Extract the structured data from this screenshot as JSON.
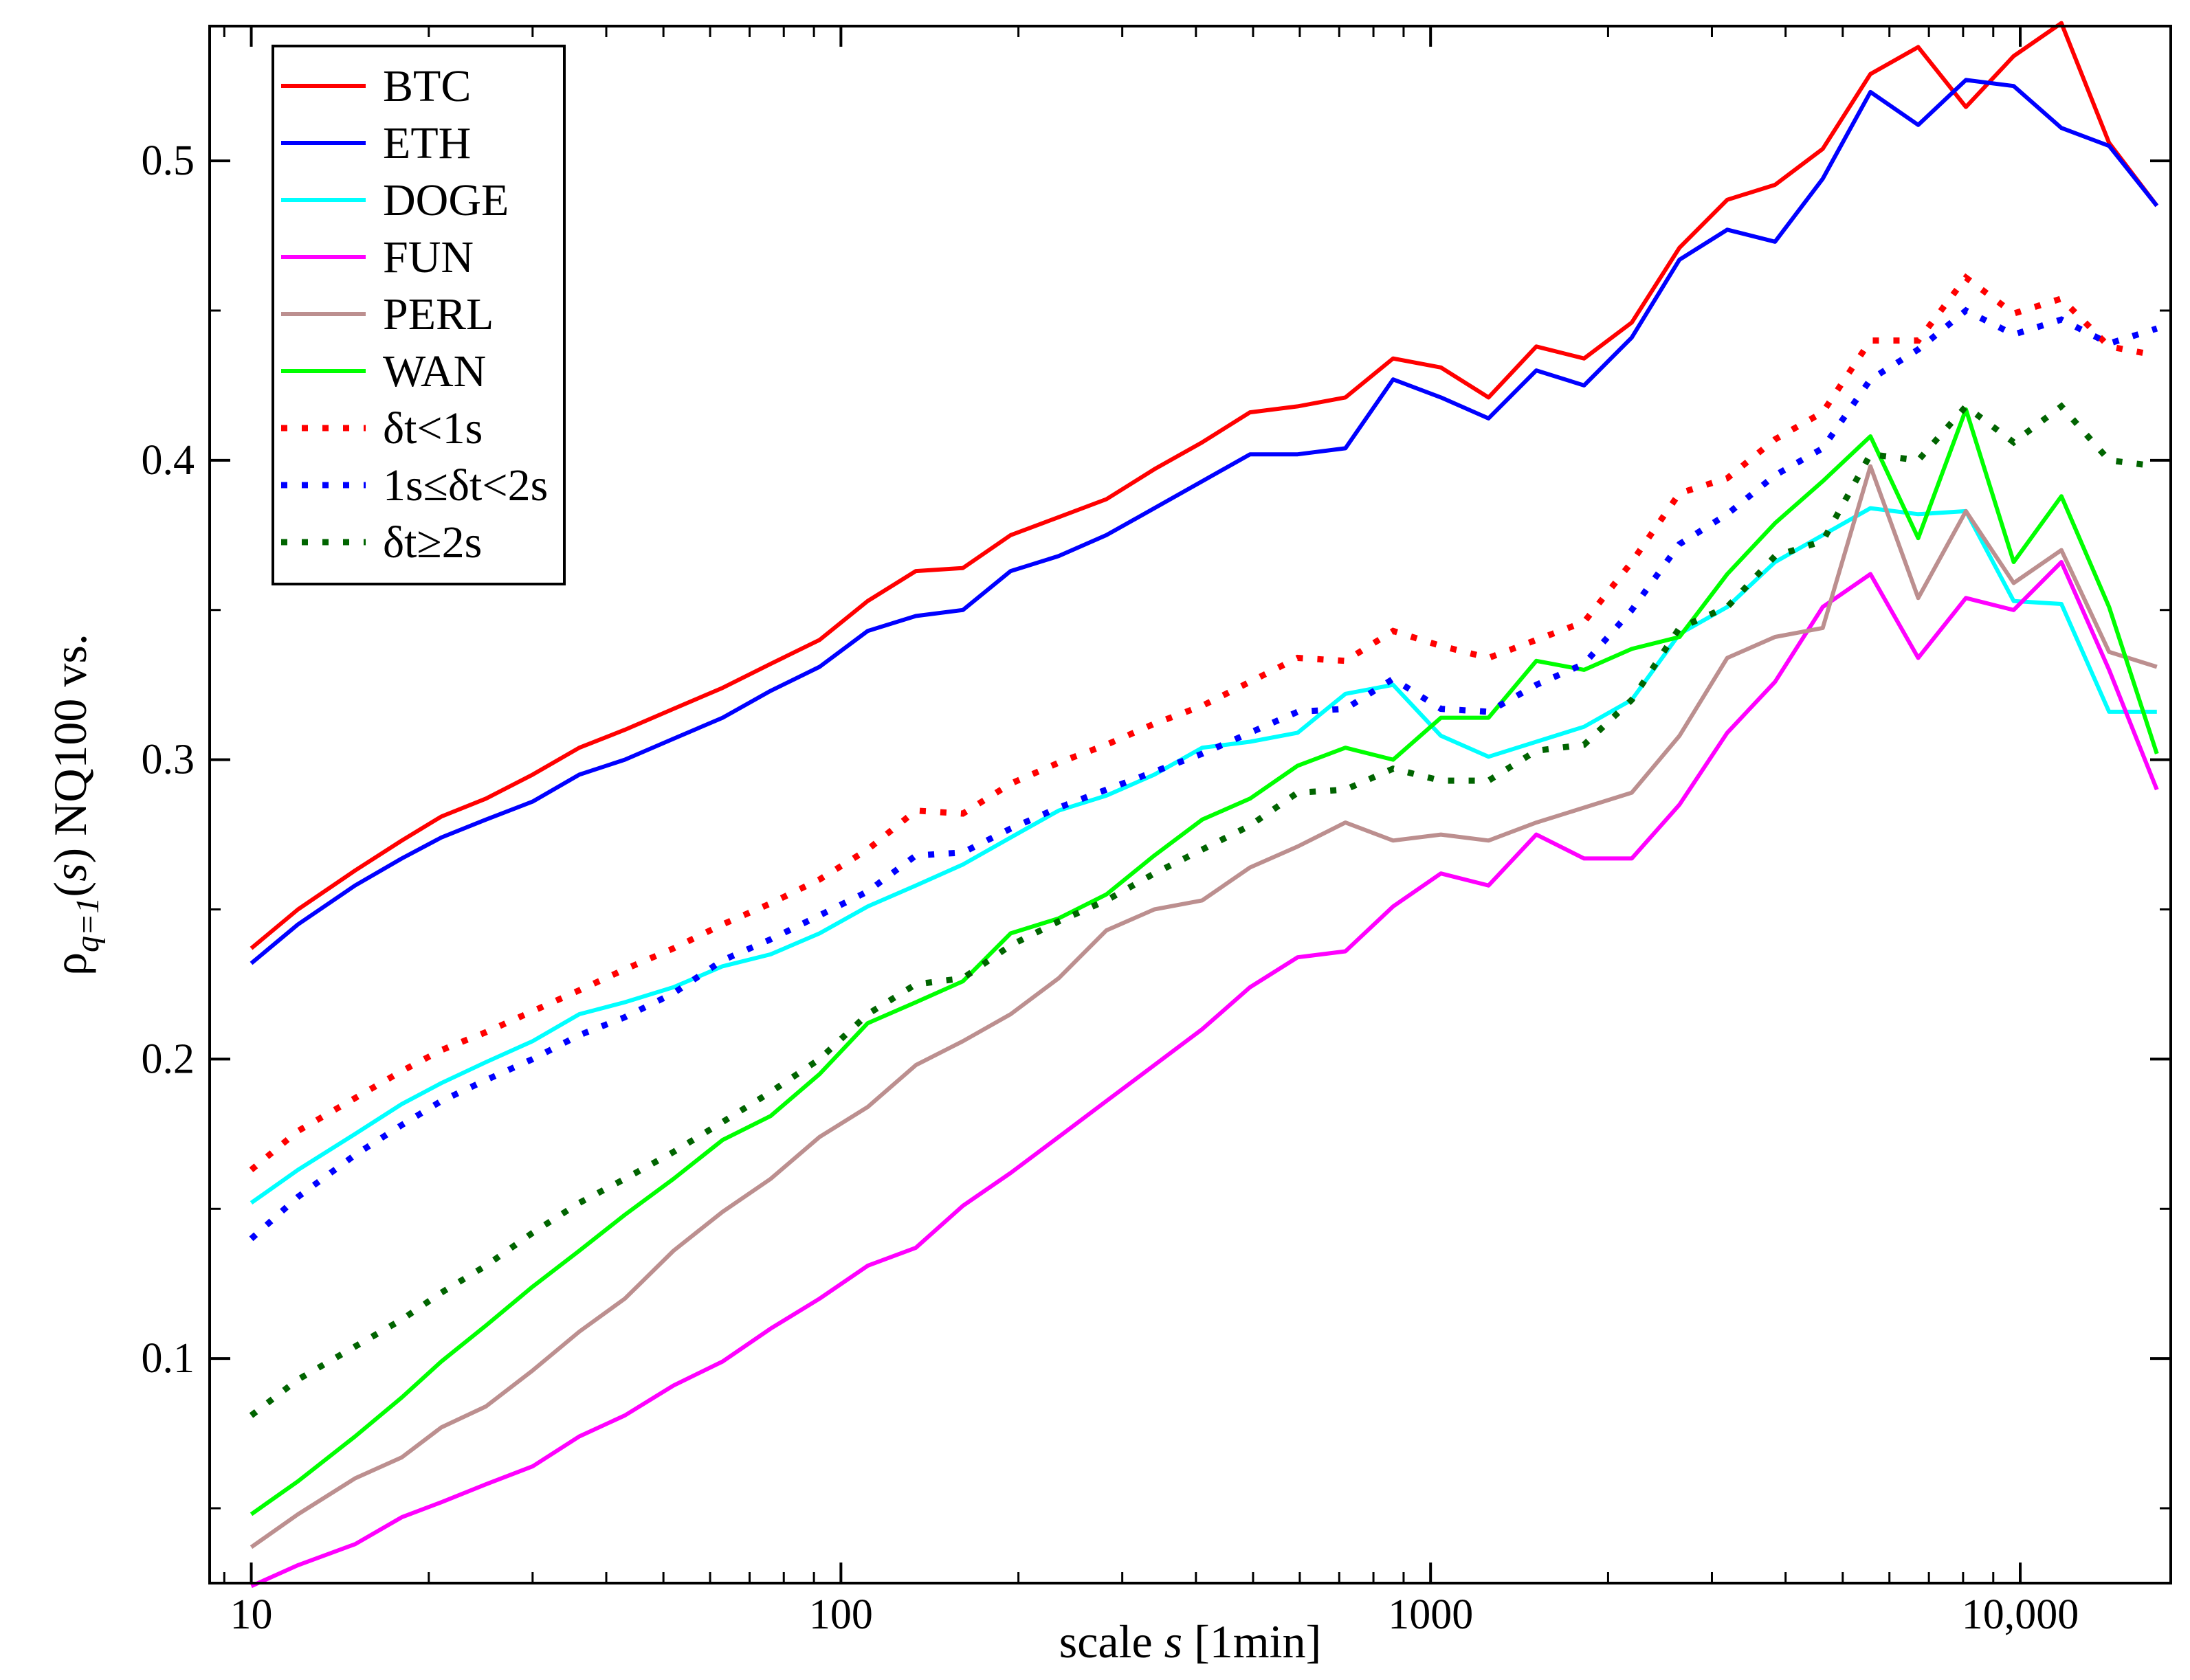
{
  "chart_data": {
    "type": "line",
    "xscale": "log",
    "xlabel": {
      "prefix": "scale ",
      "var": "s",
      "suffix": " [1min]"
    },
    "ylabel": {
      "rho": "ρ",
      "sub": "q=1",
      "open": "(",
      "var": "s",
      "rest": ") NQ100 vs."
    },
    "xlim": [
      8.5,
      18000
    ],
    "ylim": [
      0.025,
      0.545
    ],
    "xticks": [
      {
        "value": 10,
        "label": "10"
      },
      {
        "value": 100,
        "label": "100"
      },
      {
        "value": 1000,
        "label": "1000"
      },
      {
        "value": 10000,
        "label": "10,000"
      }
    ],
    "yticks": [
      {
        "value": 0.1,
        "label": "0.1"
      },
      {
        "value": 0.2,
        "label": "0.2"
      },
      {
        "value": 0.3,
        "label": "0.3"
      },
      {
        "value": 0.4,
        "label": "0.4"
      },
      {
        "value": 0.5,
        "label": "0.5"
      }
    ],
    "legend_position": "top-left",
    "x": [
      10,
      12,
      15,
      18,
      21,
      25,
      30,
      36,
      43,
      52,
      63,
      76,
      92,
      111,
      134,
      161,
      194,
      234,
      282,
      340,
      410,
      494,
      595,
      717,
      864,
      1041,
      1254,
      1511,
      1821,
      2194,
      2643,
      3185,
      3838,
      4624,
      5572,
      6714,
      8089,
      9747,
      11744,
      14150,
      17050
    ],
    "series": [
      {
        "name": "BTC",
        "color": "#ff0000",
        "style": "solid",
        "values": [
          0.237,
          0.25,
          0.263,
          0.273,
          0.281,
          0.287,
          0.295,
          0.304,
          0.31,
          0.317,
          0.324,
          0.332,
          0.34,
          0.353,
          0.363,
          0.364,
          0.375,
          0.381,
          0.387,
          0.397,
          0.406,
          0.416,
          0.418,
          0.421,
          0.434,
          0.431,
          0.421,
          0.438,
          0.434,
          0.446,
          0.471,
          0.487,
          0.492,
          0.504,
          0.529,
          0.538,
          0.518,
          0.535,
          0.546,
          0.506,
          0.485
        ]
      },
      {
        "name": "ETH",
        "color": "#0000ff",
        "style": "solid",
        "values": [
          0.232,
          0.245,
          0.258,
          0.267,
          0.274,
          0.28,
          0.286,
          0.295,
          0.3,
          0.307,
          0.314,
          0.323,
          0.331,
          0.343,
          0.348,
          0.35,
          0.363,
          0.368,
          0.375,
          0.384,
          0.393,
          0.402,
          0.402,
          0.404,
          0.427,
          0.421,
          0.414,
          0.43,
          0.425,
          0.441,
          0.467,
          0.477,
          0.473,
          0.494,
          0.523,
          0.512,
          0.527,
          0.525,
          0.511,
          0.505,
          0.485
        ]
      },
      {
        "name": "DOGE",
        "color": "#00ffff",
        "style": "solid",
        "values": [
          0.152,
          0.163,
          0.175,
          0.185,
          0.192,
          0.199,
          0.206,
          0.215,
          0.219,
          0.224,
          0.231,
          0.235,
          0.242,
          0.251,
          0.258,
          0.265,
          0.274,
          0.283,
          0.288,
          0.295,
          0.304,
          0.306,
          0.309,
          0.322,
          0.325,
          0.308,
          0.301,
          0.306,
          0.311,
          0.32,
          0.342,
          0.351,
          0.366,
          0.375,
          0.384,
          0.382,
          0.383,
          0.353,
          0.352,
          0.316,
          0.316
        ]
      },
      {
        "name": "FUN",
        "color": "#ff00ff",
        "style": "solid",
        "values": [
          0.024,
          0.031,
          0.038,
          0.047,
          0.052,
          0.058,
          0.064,
          0.074,
          0.081,
          0.091,
          0.099,
          0.11,
          0.12,
          0.131,
          0.137,
          0.151,
          0.162,
          0.174,
          0.186,
          0.198,
          0.21,
          0.224,
          0.234,
          0.236,
          0.251,
          0.262,
          0.258,
          0.275,
          0.267,
          0.267,
          0.285,
          0.309,
          0.326,
          0.351,
          0.362,
          0.334,
          0.354,
          0.35,
          0.366,
          0.33,
          0.29
        ]
      },
      {
        "name": "PERL",
        "color": "#bc8f8f",
        "style": "solid",
        "values": [
          0.037,
          0.048,
          0.06,
          0.067,
          0.077,
          0.084,
          0.096,
          0.109,
          0.12,
          0.136,
          0.149,
          0.16,
          0.174,
          0.184,
          0.198,
          0.206,
          0.215,
          0.227,
          0.243,
          0.25,
          0.253,
          0.264,
          0.271,
          0.279,
          0.273,
          0.275,
          0.273,
          0.279,
          0.284,
          0.289,
          0.308,
          0.334,
          0.341,
          0.344,
          0.398,
          0.354,
          0.383,
          0.359,
          0.37,
          0.336,
          0.331
        ]
      },
      {
        "name": "WAN",
        "color": "#00ff00",
        "style": "solid",
        "values": [
          0.048,
          0.059,
          0.074,
          0.087,
          0.099,
          0.111,
          0.124,
          0.136,
          0.148,
          0.16,
          0.173,
          0.181,
          0.195,
          0.212,
          0.219,
          0.226,
          0.242,
          0.247,
          0.255,
          0.268,
          0.28,
          0.287,
          0.298,
          0.304,
          0.3,
          0.314,
          0.314,
          0.333,
          0.33,
          0.337,
          0.341,
          0.362,
          0.379,
          0.393,
          0.408,
          0.374,
          0.417,
          0.366,
          0.388,
          0.351,
          0.302
        ]
      },
      {
        "name": "δt<1s",
        "color": "#ff0000",
        "style": "dotted",
        "values": [
          0.163,
          0.176,
          0.187,
          0.196,
          0.203,
          0.209,
          0.216,
          0.223,
          0.23,
          0.237,
          0.245,
          0.252,
          0.26,
          0.27,
          0.283,
          0.282,
          0.292,
          0.299,
          0.305,
          0.312,
          0.318,
          0.326,
          0.334,
          0.333,
          0.343,
          0.338,
          0.334,
          0.34,
          0.346,
          0.366,
          0.389,
          0.394,
          0.407,
          0.416,
          0.44,
          0.44,
          0.461,
          0.449,
          0.454,
          0.438,
          0.435
        ]
      },
      {
        "name": "1s≤δt<2s",
        "color": "#0000ff",
        "style": "dotted",
        "values": [
          0.14,
          0.154,
          0.168,
          0.178,
          0.186,
          0.193,
          0.2,
          0.208,
          0.214,
          0.222,
          0.233,
          0.24,
          0.248,
          0.256,
          0.268,
          0.269,
          0.277,
          0.284,
          0.29,
          0.296,
          0.302,
          0.309,
          0.316,
          0.317,
          0.327,
          0.317,
          0.316,
          0.325,
          0.332,
          0.35,
          0.372,
          0.382,
          0.395,
          0.404,
          0.427,
          0.437,
          0.45,
          0.442,
          0.447,
          0.439,
          0.444
        ]
      },
      {
        "name": "δt≥2s",
        "color": "#006400",
        "style": "dotted",
        "values": [
          0.081,
          0.093,
          0.104,
          0.113,
          0.122,
          0.131,
          0.142,
          0.152,
          0.16,
          0.169,
          0.179,
          0.189,
          0.2,
          0.215,
          0.225,
          0.227,
          0.238,
          0.246,
          0.253,
          0.262,
          0.27,
          0.278,
          0.289,
          0.29,
          0.297,
          0.293,
          0.293,
          0.303,
          0.305,
          0.32,
          0.344,
          0.351,
          0.368,
          0.373,
          0.402,
          0.4,
          0.418,
          0.406,
          0.418,
          0.4,
          0.398
        ]
      }
    ]
  }
}
